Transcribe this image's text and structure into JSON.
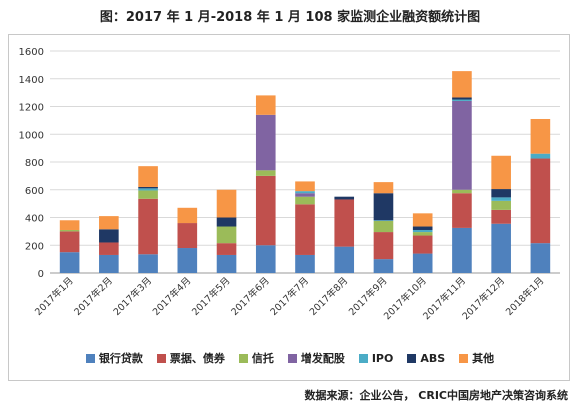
{
  "title": "图：2017 年 1 月-2018 年 1 月 108 家监测企业融资额统计图",
  "source": "数据来源：企业公告， CRIC中国房地产决策咨询系统",
  "chart_data": {
    "type": "bar",
    "stacked": true,
    "categories": [
      "2017年1月",
      "2017年2月",
      "2017年3月",
      "2017年4月",
      "2017年5月",
      "2017年6月",
      "2017年7月",
      "2017年8月",
      "2017年9月",
      "2017年10月",
      "2017年11月",
      "2017年12月",
      "2018年1月"
    ],
    "ylim": [
      0,
      1600
    ],
    "yticks": [
      0,
      200,
      400,
      600,
      800,
      1000,
      1200,
      1400,
      1600
    ],
    "grid": true,
    "legend_position": "bottom",
    "series": [
      {
        "name": "银行贷款",
        "color": "#4f81bd",
        "values": [
          150,
          130,
          135,
          180,
          130,
          200,
          130,
          190,
          100,
          140,
          325,
          355,
          215
        ]
      },
      {
        "name": "票据、债券",
        "color": "#c0504d",
        "values": [
          150,
          90,
          400,
          180,
          85,
          500,
          365,
          340,
          195,
          130,
          250,
          100,
          610
        ]
      },
      {
        "name": "信托",
        "color": "#9bbb59",
        "values": [
          10,
          0,
          60,
          0,
          120,
          40,
          55,
          0,
          80,
          25,
          25,
          65,
          0
        ]
      },
      {
        "name": "增发配股",
        "color": "#8064a2",
        "values": [
          0,
          0,
          0,
          0,
          0,
          400,
          25,
          0,
          0,
          0,
          640,
          0,
          0
        ]
      },
      {
        "name": "IPO",
        "color": "#4bacc6",
        "values": [
          0,
          0,
          15,
          0,
          0,
          0,
          15,
          0,
          5,
          15,
          10,
          25,
          35
        ]
      },
      {
        "name": "ABS",
        "color": "#1f3864",
        "values": [
          0,
          95,
          10,
          0,
          65,
          0,
          0,
          20,
          195,
          25,
          15,
          60,
          0
        ]
      },
      {
        "name": "其他",
        "color": "#f79646",
        "values": [
          70,
          95,
          150,
          110,
          200,
          140,
          70,
          0,
          80,
          95,
          190,
          240,
          250
        ]
      }
    ]
  }
}
